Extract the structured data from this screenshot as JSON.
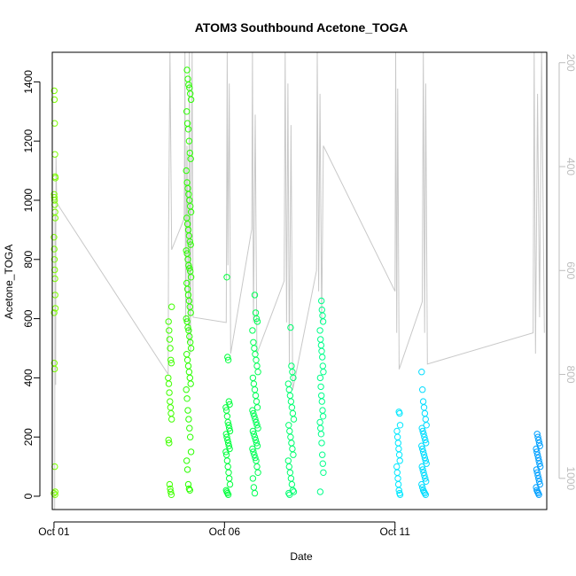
{
  "chart_data": {
    "type": "scatter",
    "title": "ATOM3 Southbound Acetone_TOGA",
    "xlabel": "Date",
    "ylabel": "Acetone_TOGA",
    "x_unit": "day of October (fractional)",
    "xlim": [
      0.95,
      15.45
    ],
    "ylim": [
      -45,
      1500
    ],
    "x_ticks": [
      {
        "value": 1,
        "label": "Oct 01"
      },
      {
        "value": 6,
        "label": "Oct 06"
      },
      {
        "value": 11,
        "label": "Oct 11"
      }
    ],
    "y_ticks": [
      0,
      200,
      400,
      600,
      800,
      1000,
      1200,
      1400
    ],
    "secondary_axis": {
      "side": "right",
      "reversed": true,
      "color": "#bdbdbd",
      "lim": [
        1060,
        180
      ],
      "ticks": [
        200,
        400,
        600,
        800,
        1000
      ],
      "series_color": "#c8c8c8"
    },
    "color_scale": [
      "#7cff00",
      "#00ff2a",
      "#00ff8a",
      "#00e8ff",
      "#00a0ff"
    ],
    "flights": [
      {
        "center": 1.02,
        "spread": 0.02,
        "color": "#7cff00",
        "values": [
          10,
          15,
          5,
          100,
          430,
          450,
          620,
          635,
          680,
          735,
          765,
          800,
          835,
          875,
          940,
          960,
          985,
          1000,
          1010,
          1020,
          1075,
          1080,
          1155,
          1260,
          1340,
          1370
        ]
      },
      {
        "center": 4.4,
        "spread": 0.05,
        "color": "#40ff00",
        "values": [
          5,
          15,
          25,
          40,
          180,
          190,
          260,
          280,
          300,
          320,
          350,
          380,
          400,
          450,
          460,
          500,
          530,
          560,
          590,
          640
        ]
      },
      {
        "center": 4.95,
        "spread": 0.07,
        "color": "#2aff00",
        "values": [
          20,
          25,
          40,
          90,
          120,
          150,
          200,
          230,
          260,
          290,
          330,
          360,
          380,
          400,
          420,
          440,
          460,
          480,
          500,
          520,
          540,
          560,
          570,
          590,
          600,
          620,
          640,
          660,
          680,
          700,
          720,
          740,
          760,
          770,
          780,
          800,
          820,
          830,
          850,
          860,
          880,
          900,
          920,
          940,
          960,
          980,
          1000,
          1020,
          1040,
          1060,
          1100,
          1140,
          1160,
          1200,
          1240,
          1260,
          1300,
          1340,
          1360,
          1380,
          1390,
          1410,
          1440
        ]
      },
      {
        "center": 6.1,
        "spread": 0.06,
        "color": "#00ff3c",
        "values": [
          5,
          10,
          15,
          20,
          40,
          60,
          80,
          100,
          120,
          140,
          150,
          160,
          170,
          180,
          190,
          200,
          210,
          220,
          230,
          240,
          250,
          270,
          290,
          300,
          310,
          320,
          460,
          470,
          740
        ]
      },
      {
        "center": 6.9,
        "spread": 0.08,
        "color": "#00ff55",
        "values": [
          10,
          30,
          60,
          80,
          100,
          120,
          130,
          140,
          150,
          160,
          170,
          180,
          190,
          200,
          210,
          220,
          230,
          240,
          250,
          260,
          270,
          280,
          290,
          300,
          320,
          340,
          360,
          380,
          400,
          420,
          440,
          460,
          480,
          500,
          520,
          560,
          590,
          600,
          620,
          680
        ]
      },
      {
        "center": 7.95,
        "spread": 0.08,
        "color": "#00ff70",
        "values": [
          5,
          10,
          15,
          20,
          40,
          60,
          80,
          100,
          120,
          140,
          160,
          180,
          200,
          220,
          240,
          260,
          280,
          300,
          320,
          340,
          360,
          380,
          400,
          420,
          440,
          570
        ]
      },
      {
        "center": 8.85,
        "spread": 0.05,
        "color": "#00ff8a",
        "values": [
          15,
          80,
          110,
          140,
          180,
          210,
          230,
          250,
          270,
          290,
          320,
          340,
          370,
          400,
          420,
          440,
          470,
          490,
          510,
          530,
          560,
          590,
          610,
          630,
          660
        ]
      },
      {
        "center": 11.1,
        "spread": 0.05,
        "color": "#00e8ff",
        "values": [
          5,
          10,
          20,
          40,
          60,
          80,
          100,
          120,
          140,
          160,
          180,
          200,
          220,
          240,
          280,
          285
        ]
      },
      {
        "center": 11.85,
        "spread": 0.07,
        "color": "#00dcff",
        "values": [
          5,
          10,
          15,
          20,
          30,
          40,
          50,
          60,
          70,
          80,
          90,
          100,
          110,
          120,
          130,
          140,
          150,
          160,
          170,
          180,
          190,
          200,
          210,
          220,
          230,
          240,
          260,
          280,
          300,
          320,
          360,
          420
        ]
      },
      {
        "center": 15.2,
        "spread": 0.06,
        "color": "#00a0ff",
        "values": [
          5,
          10,
          15,
          20,
          30,
          40,
          50,
          60,
          70,
          80,
          90,
          100,
          110,
          120,
          130,
          140,
          150,
          160,
          170,
          180,
          190,
          200,
          210
        ]
      }
    ],
    "altitude_line": [
      [
        1.02,
        1060
      ],
      [
        1.03,
        490
      ],
      [
        1.05,
        820
      ],
      [
        1.06,
        380
      ],
      [
        1.08,
        470
      ],
      [
        4.35,
        800
      ],
      [
        4.36,
        540
      ],
      [
        4.4,
        180
      ],
      [
        4.45,
        560
      ],
      [
        4.82,
        500
      ],
      [
        4.84,
        180
      ],
      [
        4.86,
        700
      ],
      [
        4.9,
        360
      ],
      [
        4.95,
        740
      ],
      [
        4.97,
        180
      ],
      [
        5.0,
        760
      ],
      [
        5.02,
        500
      ],
      [
        5.05,
        180
      ],
      [
        5.08,
        690
      ],
      [
        6.05,
        700
      ],
      [
        6.08,
        180
      ],
      [
        6.1,
        590
      ],
      [
        6.14,
        240
      ],
      [
        6.18,
        760
      ],
      [
        6.8,
        520
      ],
      [
        6.82,
        180
      ],
      [
        6.85,
        700
      ],
      [
        6.9,
        300
      ],
      [
        6.95,
        760
      ],
      [
        7.75,
        620
      ],
      [
        7.78,
        180
      ],
      [
        7.82,
        700
      ],
      [
        7.86,
        240
      ],
      [
        7.9,
        780
      ],
      [
        7.95,
        320
      ],
      [
        8.0,
        830
      ],
      [
        8.7,
        600
      ],
      [
        8.72,
        180
      ],
      [
        8.76,
        640
      ],
      [
        8.8,
        260
      ],
      [
        8.85,
        700
      ],
      [
        8.9,
        360
      ],
      [
        11.0,
        640
      ],
      [
        11.02,
        180
      ],
      [
        11.05,
        720
      ],
      [
        11.08,
        250
      ],
      [
        11.12,
        790
      ],
      [
        11.8,
        660
      ],
      [
        11.83,
        180
      ],
      [
        11.87,
        720
      ],
      [
        11.9,
        240
      ],
      [
        11.95,
        780
      ],
      [
        15.05,
        720
      ],
      [
        15.08,
        180
      ],
      [
        15.12,
        760
      ],
      [
        15.18,
        260
      ],
      [
        15.24,
        690
      ],
      [
        15.3,
        180
      ],
      [
        15.38,
        720
      ]
    ]
  }
}
